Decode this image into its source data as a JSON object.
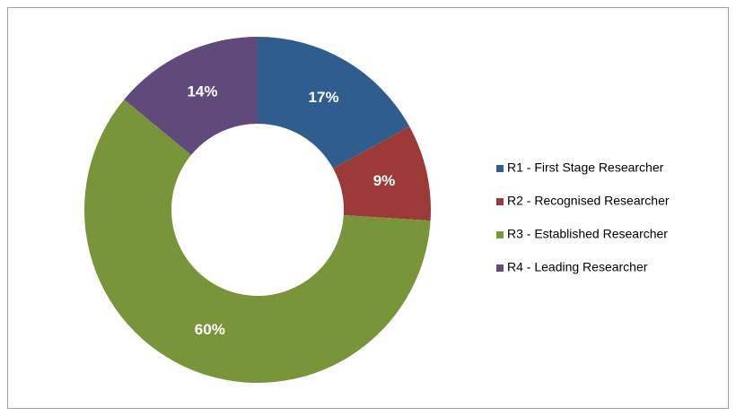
{
  "chart_data": {
    "type": "donut",
    "categories": [
      "R1 - First Stage Researcher",
      "R2 - Recognised Researcher",
      "R3 - Established Researcher",
      "R4 - Leading Researcher"
    ],
    "values": [
      17,
      9,
      60,
      14
    ],
    "value_labels": [
      "17%",
      "9%",
      "60%",
      "14%"
    ],
    "colors": [
      "#2e5d8e",
      "#9b3a37",
      "#789539",
      "#5f4a7b"
    ],
    "legend": "right"
  }
}
